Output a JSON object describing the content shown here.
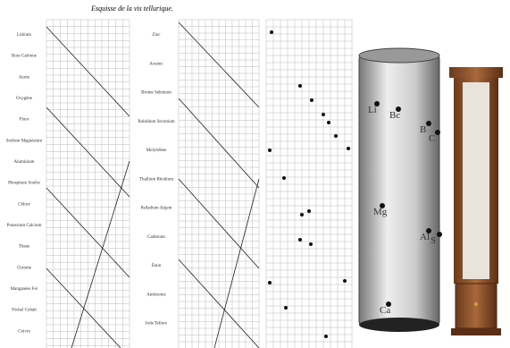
{
  "title": "Esquisse de la vis tellurique.",
  "column1": [
    "Lithium",
    "Bore Carbone",
    "Azote",
    "Oxygène",
    "Fluor",
    "Sodium Magnésium",
    "Aluminium",
    "Phosphore Soufre",
    "Chlore",
    "Potassium Calcium",
    "Titane",
    "Chrome",
    "Manganèse Fer",
    "Nickel Cobalt",
    "Cuivre"
  ],
  "column2": [
    "Zinc",
    "Arsenic",
    "Brome Sélénium",
    "Rubidium Strontium",
    "Molybdène",
    "Thallium Rhodium",
    "Palladium Argent",
    "Cadmium",
    "Étain",
    "Antimoine",
    "Iode Tellure"
  ],
  "cylinder_labels": [
    "Li",
    "Bc",
    "B",
    "C",
    "Mg",
    "Al",
    "S",
    "Ca"
  ]
}
